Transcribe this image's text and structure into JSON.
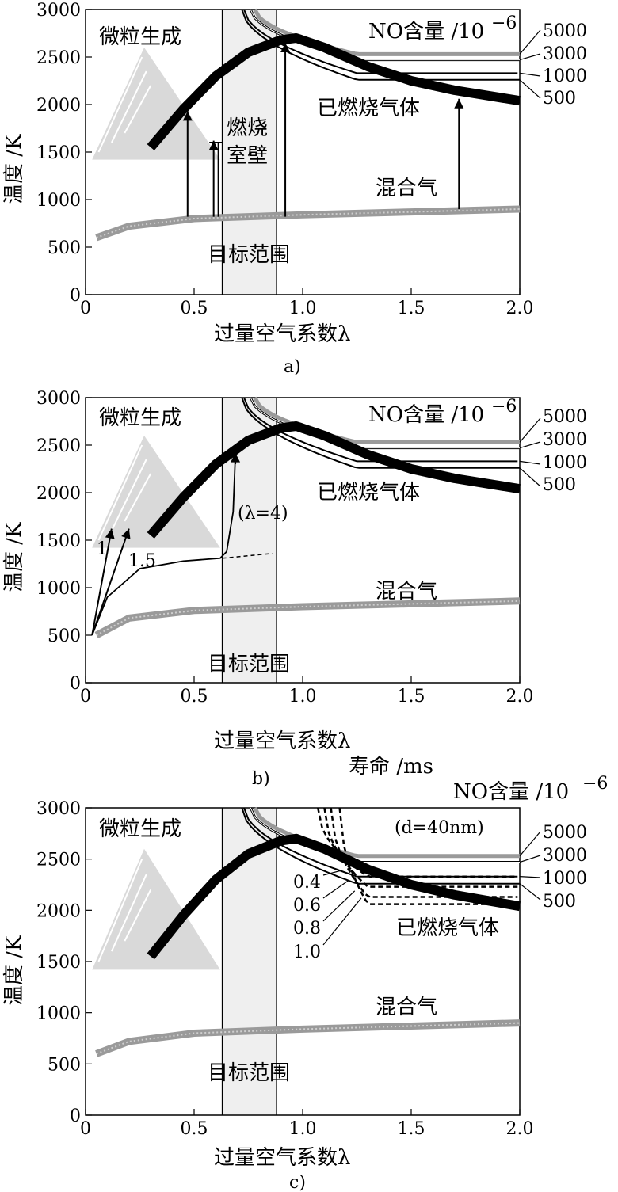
{
  "chart_data": [
    {
      "type": "line",
      "panel": "a",
      "caption": "a)",
      "xlabel": "过量空气系数λ",
      "ylabel": "温度 /K",
      "xlim": [
        0,
        2.0
      ],
      "ylim": [
        0,
        3000
      ],
      "x_ticks": [
        "0",
        "0.5",
        "1.0",
        "1.5",
        "2.0"
      ],
      "y_ticks": [
        "0",
        "500",
        "1000",
        "1500",
        "2000",
        "2500",
        "3000"
      ],
      "target_range": [
        0.63,
        0.88
      ],
      "labels": {
        "particle": "微粒生成",
        "no_title": "NO含量 /10",
        "no_exp": "−6",
        "burned": "已燃烧气体",
        "wall1": "燃烧",
        "wall2": "室壁",
        "mixture": "混合气",
        "target": "目标范围"
      },
      "no_levels": [
        "5000",
        "3000",
        "1000",
        "500"
      ],
      "series": [
        {
          "name": "已燃烧气体",
          "x": [
            0.3,
            0.45,
            0.6,
            0.75,
            0.9,
            0.97,
            1.1,
            1.3,
            1.5,
            1.7,
            2.0
          ],
          "values": [
            1550,
            1950,
            2300,
            2550,
            2680,
            2700,
            2600,
            2400,
            2250,
            2150,
            2040
          ]
        },
        {
          "name": "混合气",
          "x": [
            0.05,
            0.2,
            0.5,
            1.0,
            1.5,
            2.0
          ],
          "values": [
            600,
            720,
            800,
            840,
            870,
            900
          ]
        },
        {
          "name": "5000",
          "x": [
            0.78,
            1.0,
            1.25,
            2.0
          ],
          "values": [
            3000,
            2700,
            2530,
            2530
          ]
        },
        {
          "name": "3000",
          "x": [
            0.76,
            1.0,
            1.25,
            2.0
          ],
          "values": [
            3000,
            2620,
            2470,
            2470
          ]
        },
        {
          "name": "1000",
          "x": [
            0.73,
            1.0,
            1.25,
            2.0
          ],
          "values": [
            3000,
            2500,
            2320,
            2320
          ]
        },
        {
          "name": "500",
          "x": [
            0.72,
            1.0,
            1.25,
            2.0
          ],
          "values": [
            3000,
            2420,
            2260,
            2260
          ]
        }
      ],
      "arrows": [
        {
          "x": 0.47,
          "from": 820,
          "to": 1930
        },
        {
          "x": 0.59,
          "from": 820,
          "to": 1620
        },
        {
          "x": 0.92,
          "from": 820,
          "to": 2650
        },
        {
          "x": 1.72,
          "from": 900,
          "to": 2060
        }
      ]
    },
    {
      "type": "line",
      "panel": "b",
      "caption": "b)",
      "xlabel": "过量空气系数λ",
      "ylabel": "温度 /K",
      "xlim": [
        0,
        2.0
      ],
      "ylim": [
        0,
        3000
      ],
      "x_ticks": [
        "0",
        "0.5",
        "1.0",
        "1.5",
        "2.0"
      ],
      "y_ticks": [
        "0",
        "500",
        "1000",
        "1500",
        "2000",
        "2500",
        "3000"
      ],
      "target_range": [
        0.63,
        0.88
      ],
      "labels": {
        "particle": "微粒生成",
        "no_title": "NO含量 /10",
        "no_exp": "−6",
        "burned": "已燃烧气体",
        "mixture": "混合气",
        "target": "目标范围",
        "lambda4": "(λ=4)",
        "l1": "1",
        "l15": "1.5"
      },
      "no_levels": [
        "5000",
        "3000",
        "1000",
        "500"
      ],
      "series": [
        {
          "name": "已燃烧气体",
          "x": [
            0.3,
            0.45,
            0.6,
            0.75,
            0.9,
            0.97,
            1.1,
            1.3,
            1.5,
            1.7,
            2.0
          ],
          "values": [
            1550,
            1950,
            2300,
            2550,
            2680,
            2700,
            2600,
            2400,
            2250,
            2150,
            2040
          ]
        },
        {
          "name": "混合气",
          "x": [
            0.05,
            0.2,
            0.5,
            1.0,
            1.5,
            2.0
          ],
          "values": [
            500,
            680,
            760,
            800,
            830,
            860
          ]
        },
        {
          "name": "λ=4",
          "x": [
            0.03,
            0.1,
            0.25,
            0.45,
            0.62,
            0.65,
            0.68,
            0.69
          ],
          "values": [
            500,
            900,
            1200,
            1280,
            1310,
            1380,
            1800,
            2400
          ]
        }
      ],
      "arrows": [
        {
          "x_from": 0.03,
          "x_to": 0.12,
          "from": 500,
          "to": 1620
        },
        {
          "x_from": 0.03,
          "x_to": 0.2,
          "from": 500,
          "to": 1620
        }
      ]
    },
    {
      "type": "line",
      "panel": "c",
      "caption": "c)",
      "xlabel": "过量空气系数λ",
      "ylabel": "温度 /K",
      "xlim": [
        0,
        2.0
      ],
      "ylim": [
        0,
        3000
      ],
      "x_ticks": [
        "0",
        "0.5",
        "1.0",
        "1.5",
        "2.0"
      ],
      "y_ticks": [
        "0",
        "500",
        "1000",
        "1500",
        "2000",
        "2500",
        "3000"
      ],
      "target_range": [
        0.63,
        0.88
      ],
      "labels": {
        "particle": "微粒生成",
        "no_title": "NO含量 /10",
        "no_exp": "−6",
        "life": "寿命 /ms",
        "diameter": "(d=40nm)",
        "burned": "已燃烧气体",
        "mixture": "混合气",
        "target": "目标范围"
      },
      "no_levels": [
        "5000",
        "3000",
        "1000",
        "500"
      ],
      "lifetimes": [
        "0.4",
        "0.6",
        "0.8",
        "1.0"
      ],
      "series": [
        {
          "name": "已燃烧气体",
          "x": [
            0.3,
            0.45,
            0.6,
            0.75,
            0.9,
            0.97,
            1.1,
            1.3,
            1.5,
            1.7,
            2.0
          ],
          "values": [
            1550,
            1950,
            2300,
            2550,
            2680,
            2700,
            2600,
            2400,
            2250,
            2150,
            2040
          ]
        },
        {
          "name": "混合气",
          "x": [
            0.05,
            0.2,
            0.5,
            1.0,
            1.5,
            2.0
          ],
          "values": [
            600,
            720,
            800,
            840,
            870,
            900
          ]
        }
      ]
    }
  ],
  "top_text": {
    "life": "寿命 /ms"
  }
}
